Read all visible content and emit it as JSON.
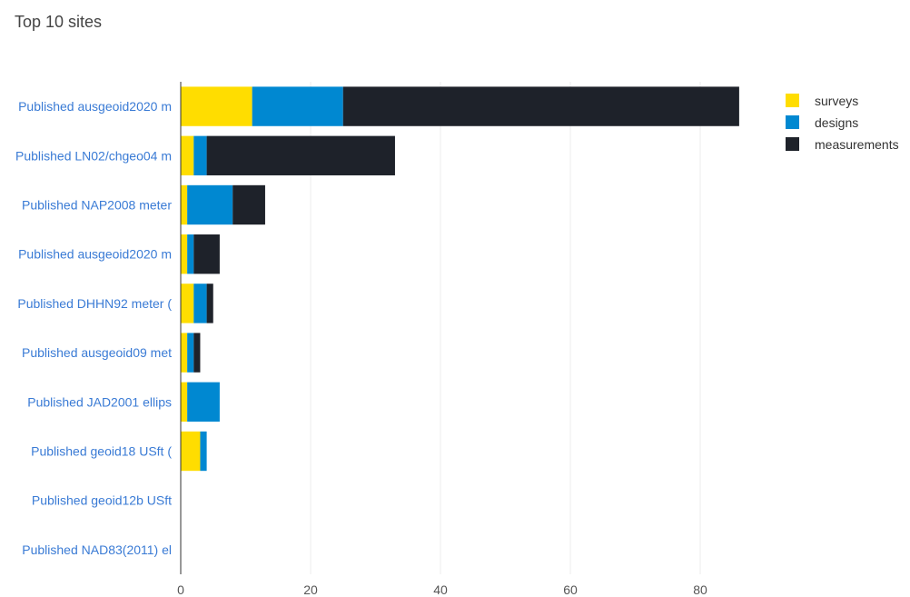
{
  "title": "Top 10 sites",
  "chart_data": {
    "type": "bar",
    "orientation": "horizontal",
    "stacked": true,
    "title": "Top 10 sites",
    "categories": [
      "Published ausgeoid2020 m",
      "Published LN02/chgeo04 m",
      "Published NAP2008 meter",
      "Published ausgeoid2020 m",
      "Published DHHN92 meter (",
      "Published ausgeoid09 met",
      "Published JAD2001 ellips",
      "Published geoid18 USft (",
      "Published geoid12b USft",
      "Published NAD83(2011) el"
    ],
    "series": [
      {
        "name": "surveys",
        "color": "#ffdd00",
        "values": [
          11,
          2,
          1,
          1,
          2,
          1,
          1,
          3,
          0,
          0
        ]
      },
      {
        "name": "designs",
        "color": "#0088d1",
        "values": [
          14,
          2,
          7,
          1,
          2,
          1,
          5,
          1,
          0,
          0
        ]
      },
      {
        "name": "measurements",
        "color": "#1e222a",
        "values": [
          61,
          29,
          5,
          4,
          1,
          1,
          0,
          0,
          0,
          0
        ]
      }
    ],
    "xticks": [
      0,
      20,
      40,
      60,
      80
    ],
    "xlim": [
      0,
      100
    ],
    "xlabel": "",
    "ylabel": "",
    "grid": true,
    "legend_position": "top-right"
  }
}
